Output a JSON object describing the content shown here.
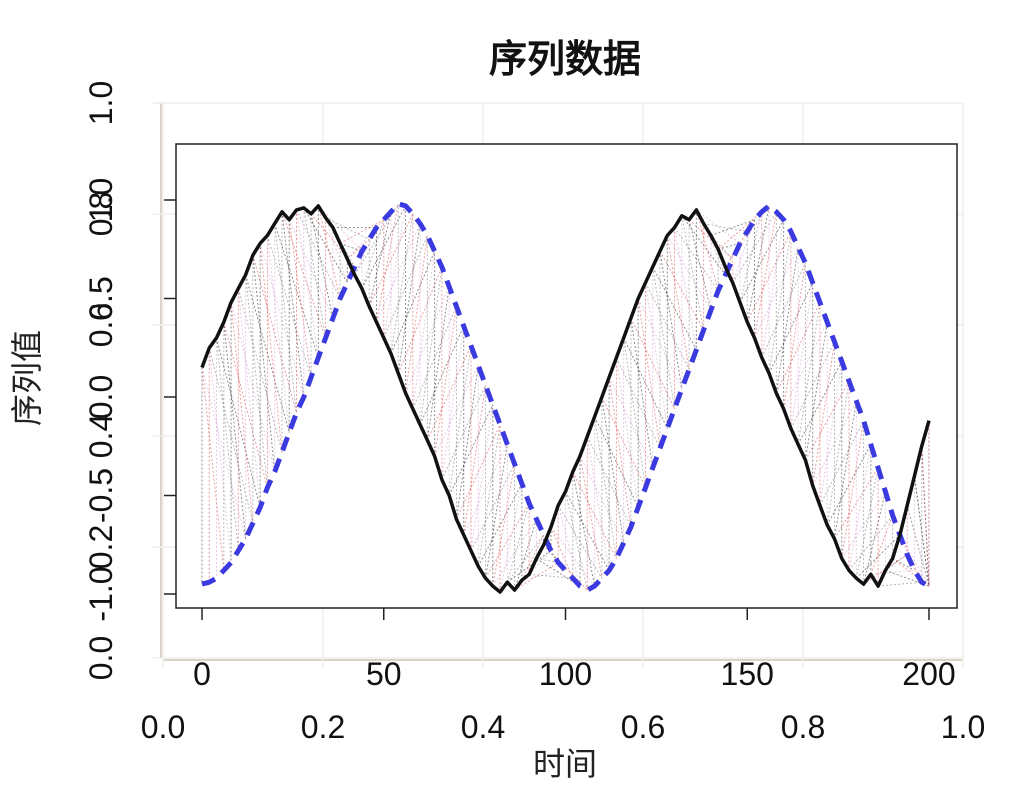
{
  "chart_data": {
    "type": "line",
    "title": "序列数据",
    "xlabel": "时间",
    "ylabel": "序列值",
    "x_range": [
      0,
      200
    ],
    "y_range": [
      -1.0,
      1.0
    ],
    "x_ticks": [
      "0",
      "50",
      "100",
      "150",
      "200"
    ],
    "y_ticks": [
      "-1.0",
      "-0.5",
      "0.0",
      "0.5",
      "1.0"
    ],
    "background_axis": {
      "x_range": [
        0.0,
        1.0
      ],
      "y_range": [
        0.0,
        1.0
      ],
      "x_ticks": [
        "0.0",
        "0.2",
        "0.4",
        "0.6",
        "0.8",
        "1.0"
      ],
      "y_ticks": [
        "0.0",
        "0.2",
        "0.4",
        "0.6",
        "0.8",
        "1.0"
      ]
    },
    "grid": true,
    "series": [
      {
        "line_style": "solid",
        "color": "#111111",
        "x": [
          0,
          2,
          4,
          6,
          8,
          10,
          12,
          14,
          16,
          18,
          20,
          22,
          24,
          26,
          28,
          30,
          32,
          34,
          36,
          38,
          40,
          42,
          44,
          46,
          48,
          50,
          52,
          54,
          56,
          58,
          60,
          62,
          64,
          66,
          68,
          70,
          72,
          74,
          76,
          78,
          80,
          82,
          84,
          86,
          88,
          90,
          92,
          94,
          96,
          98,
          100,
          102,
          104,
          106,
          108,
          110,
          112,
          114,
          116,
          118,
          120,
          122,
          124,
          126,
          128,
          130,
          132,
          134,
          136,
          138,
          140,
          142,
          144,
          146,
          148,
          150,
          152,
          154,
          156,
          158,
          160,
          162,
          164,
          166,
          168,
          170,
          172,
          174,
          176,
          178,
          180,
          182,
          184,
          186,
          188,
          190,
          192,
          194,
          196,
          198,
          200
        ],
        "y": [
          0.15,
          0.25,
          0.3,
          0.38,
          0.48,
          0.55,
          0.62,
          0.72,
          0.78,
          0.82,
          0.88,
          0.94,
          0.9,
          0.95,
          0.96,
          0.93,
          0.97,
          0.91,
          0.86,
          0.78,
          0.7,
          0.62,
          0.55,
          0.46,
          0.38,
          0.3,
          0.22,
          0.12,
          0.02,
          -0.06,
          -0.14,
          -0.22,
          -0.3,
          -0.42,
          -0.5,
          -0.62,
          -0.7,
          -0.78,
          -0.86,
          -0.92,
          -0.96,
          -0.99,
          -0.94,
          -0.98,
          -0.93,
          -0.9,
          -0.82,
          -0.75,
          -0.66,
          -0.55,
          -0.48,
          -0.38,
          -0.3,
          -0.2,
          -0.1,
          0.0,
          0.1,
          0.2,
          0.3,
          0.4,
          0.5,
          0.58,
          0.66,
          0.74,
          0.82,
          0.86,
          0.92,
          0.9,
          0.95,
          0.88,
          0.82,
          0.75,
          0.66,
          0.58,
          0.48,
          0.38,
          0.3,
          0.2,
          0.12,
          0.02,
          -0.06,
          -0.16,
          -0.24,
          -0.32,
          -0.45,
          -0.55,
          -0.65,
          -0.72,
          -0.82,
          -0.88,
          -0.92,
          -0.95,
          -0.9,
          -0.96,
          -0.88,
          -0.82,
          -0.7,
          -0.55,
          -0.4,
          -0.25,
          -0.12
        ]
      },
      {
        "line_style": "dashed",
        "color": "#3a3ae0",
        "x": [
          0,
          2,
          4,
          6,
          8,
          10,
          12,
          14,
          16,
          18,
          20,
          22,
          24,
          26,
          28,
          30,
          32,
          34,
          36,
          38,
          40,
          42,
          44,
          46,
          48,
          50,
          52,
          54,
          56,
          58,
          60,
          62,
          64,
          66,
          68,
          70,
          72,
          74,
          76,
          78,
          80,
          82,
          84,
          86,
          88,
          90,
          92,
          94,
          96,
          98,
          100,
          102,
          104,
          106,
          108,
          110,
          112,
          114,
          116,
          118,
          120,
          122,
          124,
          126,
          128,
          130,
          132,
          134,
          136,
          138,
          140,
          142,
          144,
          146,
          148,
          150,
          152,
          154,
          156,
          158,
          160,
          162,
          164,
          166,
          168,
          170,
          172,
          174,
          176,
          178,
          180,
          182,
          184,
          186,
          188,
          190,
          192,
          194,
          196,
          198,
          200
        ],
        "y": [
          -0.95,
          -0.94,
          -0.92,
          -0.88,
          -0.84,
          -0.78,
          -0.72,
          -0.64,
          -0.56,
          -0.46,
          -0.38,
          -0.28,
          -0.18,
          -0.08,
          0.0,
          0.1,
          0.2,
          0.3,
          0.4,
          0.5,
          0.58,
          0.66,
          0.74,
          0.8,
          0.86,
          0.9,
          0.94,
          0.98,
          0.97,
          0.93,
          0.88,
          0.82,
          0.74,
          0.66,
          0.56,
          0.46,
          0.36,
          0.26,
          0.16,
          0.06,
          -0.04,
          -0.14,
          -0.24,
          -0.34,
          -0.44,
          -0.54,
          -0.62,
          -0.7,
          -0.78,
          -0.84,
          -0.88,
          -0.92,
          -0.96,
          -0.98,
          -0.96,
          -0.92,
          -0.88,
          -0.82,
          -0.74,
          -0.66,
          -0.56,
          -0.46,
          -0.36,
          -0.26,
          -0.16,
          -0.06,
          0.04,
          0.14,
          0.24,
          0.34,
          0.44,
          0.54,
          0.62,
          0.7,
          0.78,
          0.84,
          0.9,
          0.94,
          0.97,
          0.94,
          0.9,
          0.84,
          0.76,
          0.68,
          0.58,
          0.48,
          0.38,
          0.28,
          0.18,
          0.08,
          -0.02,
          -0.12,
          -0.24,
          -0.36,
          -0.48,
          -0.6,
          -0.7,
          -0.8,
          -0.88,
          -0.94,
          -0.96
        ]
      }
    ],
    "connector_colors": [
      "#333333",
      "#e05050",
      "#d0a0d0",
      "#808080"
    ]
  }
}
